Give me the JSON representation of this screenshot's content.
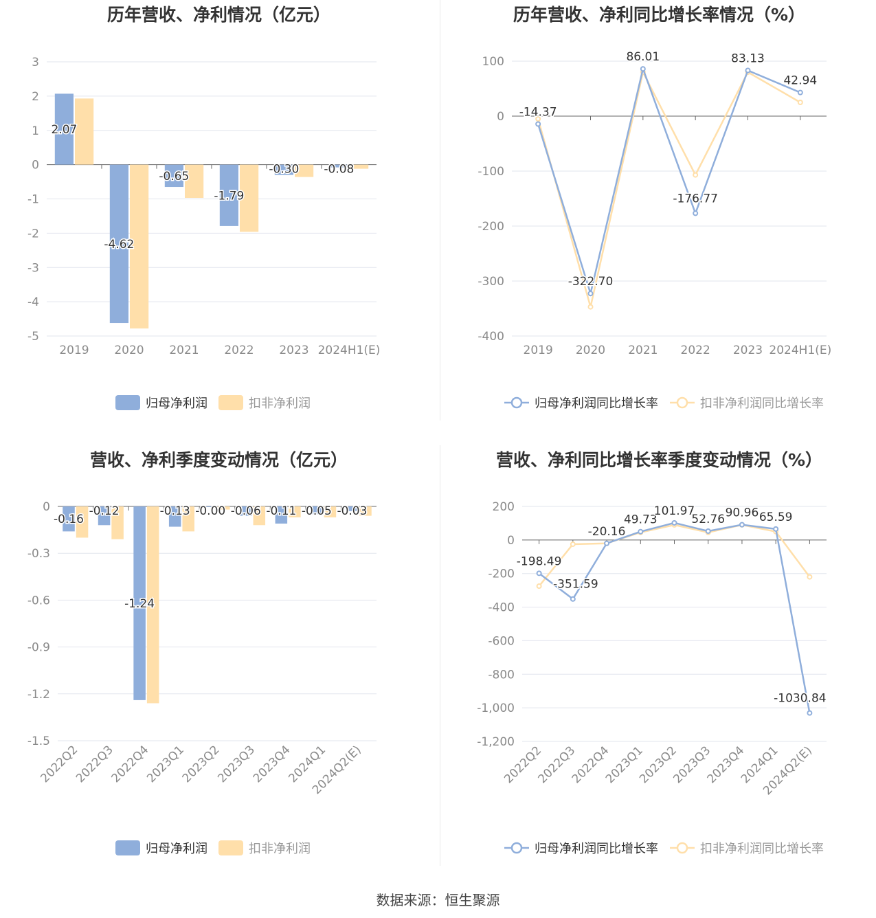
{
  "colors": {
    "series_a": "#8FAEDB",
    "series_b": "#FFDFAA",
    "grid": "#E2E5EE",
    "axis": "#666666",
    "tick": "#8a8a8a",
    "legend_active": "#333333",
    "legend_inactive": "#999999"
  },
  "source": "数据来源：恒生聚源",
  "charts": [
    {
      "id": "annual-profit",
      "type": "bar",
      "title": "历年营收、净利情况（亿元）",
      "categories": [
        "2019",
        "2020",
        "2021",
        "2022",
        "2023",
        "2024H1(E)"
      ],
      "yticks": [
        "3",
        "2",
        "1",
        "0",
        "-1",
        "-2",
        "-3",
        "-4",
        "-5"
      ],
      "ylim": [
        -5,
        3
      ],
      "series": [
        {
          "name": "归母净利润",
          "values": [
            2.07,
            -4.62,
            -0.65,
            -1.79,
            -0.3,
            -0.08
          ],
          "labels": [
            "2.07",
            "-4.62",
            "-0.65",
            "-1.79",
            "-0.30",
            "-0.08"
          ]
        },
        {
          "name": "扣非净利润",
          "values": [
            1.93,
            -4.78,
            -0.97,
            -1.96,
            -0.36,
            -0.12
          ],
          "labels": null
        }
      ],
      "legend": [
        "归母净利润",
        "扣非净利润"
      ]
    },
    {
      "id": "annual-growth",
      "type": "line",
      "title": "历年营收、净利同比增长率情况（%）",
      "categories": [
        "2019",
        "2020",
        "2021",
        "2022",
        "2023",
        "2024H1(E)"
      ],
      "yticks": [
        "100",
        "0",
        "-100",
        "-200",
        "-300",
        "-400"
      ],
      "ylim": [
        -400,
        100
      ],
      "series": [
        {
          "name": "归母净利润同比增长率",
          "values": [
            -14.37,
            -322.7,
            86.01,
            -176.77,
            83.13,
            42.94
          ],
          "labels": [
            "-14.37",
            "-322.70",
            "86.01",
            "-176.77",
            "83.13",
            "42.94"
          ]
        },
        {
          "name": "扣非净利润同比增长率",
          "values": [
            -5,
            -347,
            80,
            -107,
            80,
            25
          ],
          "labels": null
        }
      ],
      "legend": [
        "归母净利润同比增长率",
        "扣非净利润同比增长率"
      ]
    },
    {
      "id": "quarterly-profit",
      "type": "bar",
      "title": "营收、净利季度变动情况（亿元）",
      "categories": [
        "2022Q2",
        "2022Q3",
        "2022Q4",
        "2023Q1",
        "2023Q2",
        "2023Q3",
        "2023Q4",
        "2024Q1",
        "2024Q2(E)"
      ],
      "yticks": [
        "0",
        "-0.3",
        "-0.6",
        "-0.9",
        "-1.2",
        "-1.5"
      ],
      "ylim": [
        -1.5,
        0
      ],
      "series": [
        {
          "name": "归母净利润",
          "values": [
            -0.16,
            -0.12,
            -1.24,
            -0.13,
            -0.0,
            -0.06,
            -0.11,
            -0.05,
            -0.03
          ],
          "labels": [
            "-0.16",
            "-0.12",
            "-1.24",
            "-0.13",
            "-0.00",
            "-0.06",
            "-0.11",
            "-0.05",
            "-0.03"
          ]
        },
        {
          "name": "扣非净利润",
          "values": [
            -0.2,
            -0.21,
            -1.26,
            -0.16,
            -0.02,
            -0.12,
            -0.07,
            -0.07,
            -0.06
          ],
          "labels": null
        }
      ],
      "legend": [
        "归母净利润",
        "扣非净利润"
      ]
    },
    {
      "id": "quarterly-growth",
      "type": "line",
      "title": "营收、净利同比增长率季度变动情况（%）",
      "categories": [
        "2022Q2",
        "2022Q3",
        "2022Q4",
        "2023Q1",
        "2023Q2",
        "2023Q3",
        "2023Q4",
        "2024Q1",
        "2024Q2(E)"
      ],
      "yticks": [
        "200",
        "0",
        "-200",
        "-400",
        "-600",
        "-800",
        "-1,000",
        "-1,200"
      ],
      "ylim": [
        -1200,
        200
      ],
      "series": [
        {
          "name": "归母净利润同比增长率",
          "values": [
            -198.49,
            -351.59,
            -20.16,
            49.73,
            101.97,
            52.76,
            90.96,
            65.59,
            -1030.84
          ],
          "labels": [
            "-198.49",
            "-351.59",
            "-20.16",
            "49.73",
            "101.97",
            "52.76",
            "90.96",
            "65.59",
            "-1030.84"
          ]
        },
        {
          "name": "扣非净利润同比增长率",
          "values": [
            -275,
            -25,
            -20,
            45,
            90,
            45,
            90,
            50,
            -220
          ],
          "labels": null
        }
      ],
      "legend": [
        "归母净利润同比增长率",
        "扣非净利润同比增长率"
      ]
    }
  ]
}
